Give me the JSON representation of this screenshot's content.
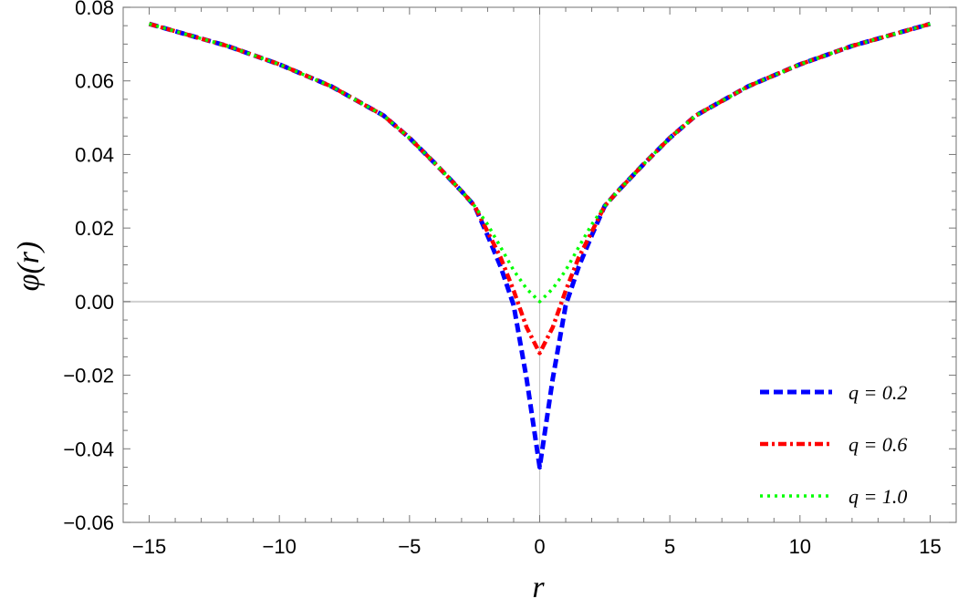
{
  "chart_data": {
    "type": "line",
    "title": "",
    "xlabel": "r",
    "ylabel": "φ(r)",
    "xlim": [
      -16,
      16
    ],
    "ylim": [
      -0.06,
      0.08
    ],
    "xticks": [
      -15,
      -10,
      -5,
      0,
      5,
      10,
      15
    ],
    "xtick_labels": [
      "−15",
      "−10",
      "−5",
      "0",
      "5",
      "10",
      "15"
    ],
    "yticks": [
      -0.06,
      -0.04,
      -0.02,
      0.0,
      0.02,
      0.04,
      0.06,
      0.08
    ],
    "ytick_labels": [
      "−0.06",
      "−0.04",
      "−0.02",
      "0.00",
      "0.02",
      "0.04",
      "0.06",
      "0.08"
    ],
    "grid": false,
    "legend_position": "bottom-right",
    "x": [
      -15,
      -12,
      -10,
      -8,
      -6,
      -5,
      -4,
      -3,
      -2.5,
      -2,
      -1.5,
      -1,
      -0.5,
      0,
      0.5,
      1,
      1.5,
      2,
      2.5,
      3,
      4,
      5,
      6,
      8,
      10,
      12,
      15
    ],
    "series": [
      {
        "name": "q = 0.2",
        "color": "#0000ff",
        "style": "dashed",
        "values": [
          0.0755,
          0.0695,
          0.0645,
          0.0585,
          0.0506,
          0.0445,
          0.0374,
          0.03,
          0.026,
          0.018,
          0.0095,
          -0.001,
          -0.021,
          -0.045,
          -0.021,
          -0.001,
          0.0095,
          0.018,
          0.026,
          0.03,
          0.0374,
          0.0445,
          0.0506,
          0.0585,
          0.0645,
          0.0695,
          0.0755
        ]
      },
      {
        "name": "q = 0.6",
        "color": "#ff0000",
        "style": "dashdot",
        "values": [
          0.0755,
          0.0695,
          0.0645,
          0.0585,
          0.0506,
          0.0445,
          0.0374,
          0.03,
          0.026,
          0.019,
          0.012,
          0.003,
          -0.007,
          -0.014,
          -0.007,
          0.003,
          0.012,
          0.019,
          0.026,
          0.03,
          0.0374,
          0.0445,
          0.0506,
          0.0585,
          0.0645,
          0.0695,
          0.0755
        ]
      },
      {
        "name": "q = 1.0",
        "color": "#00ff00",
        "style": "dotted",
        "values": [
          0.0755,
          0.0695,
          0.0645,
          0.0585,
          0.0506,
          0.0445,
          0.0374,
          0.03,
          0.026,
          0.021,
          0.0148,
          0.0085,
          0.0035,
          0.0,
          0.0035,
          0.0085,
          0.0148,
          0.021,
          0.026,
          0.03,
          0.0374,
          0.0445,
          0.0506,
          0.0585,
          0.0645,
          0.0695,
          0.0755
        ]
      }
    ]
  }
}
